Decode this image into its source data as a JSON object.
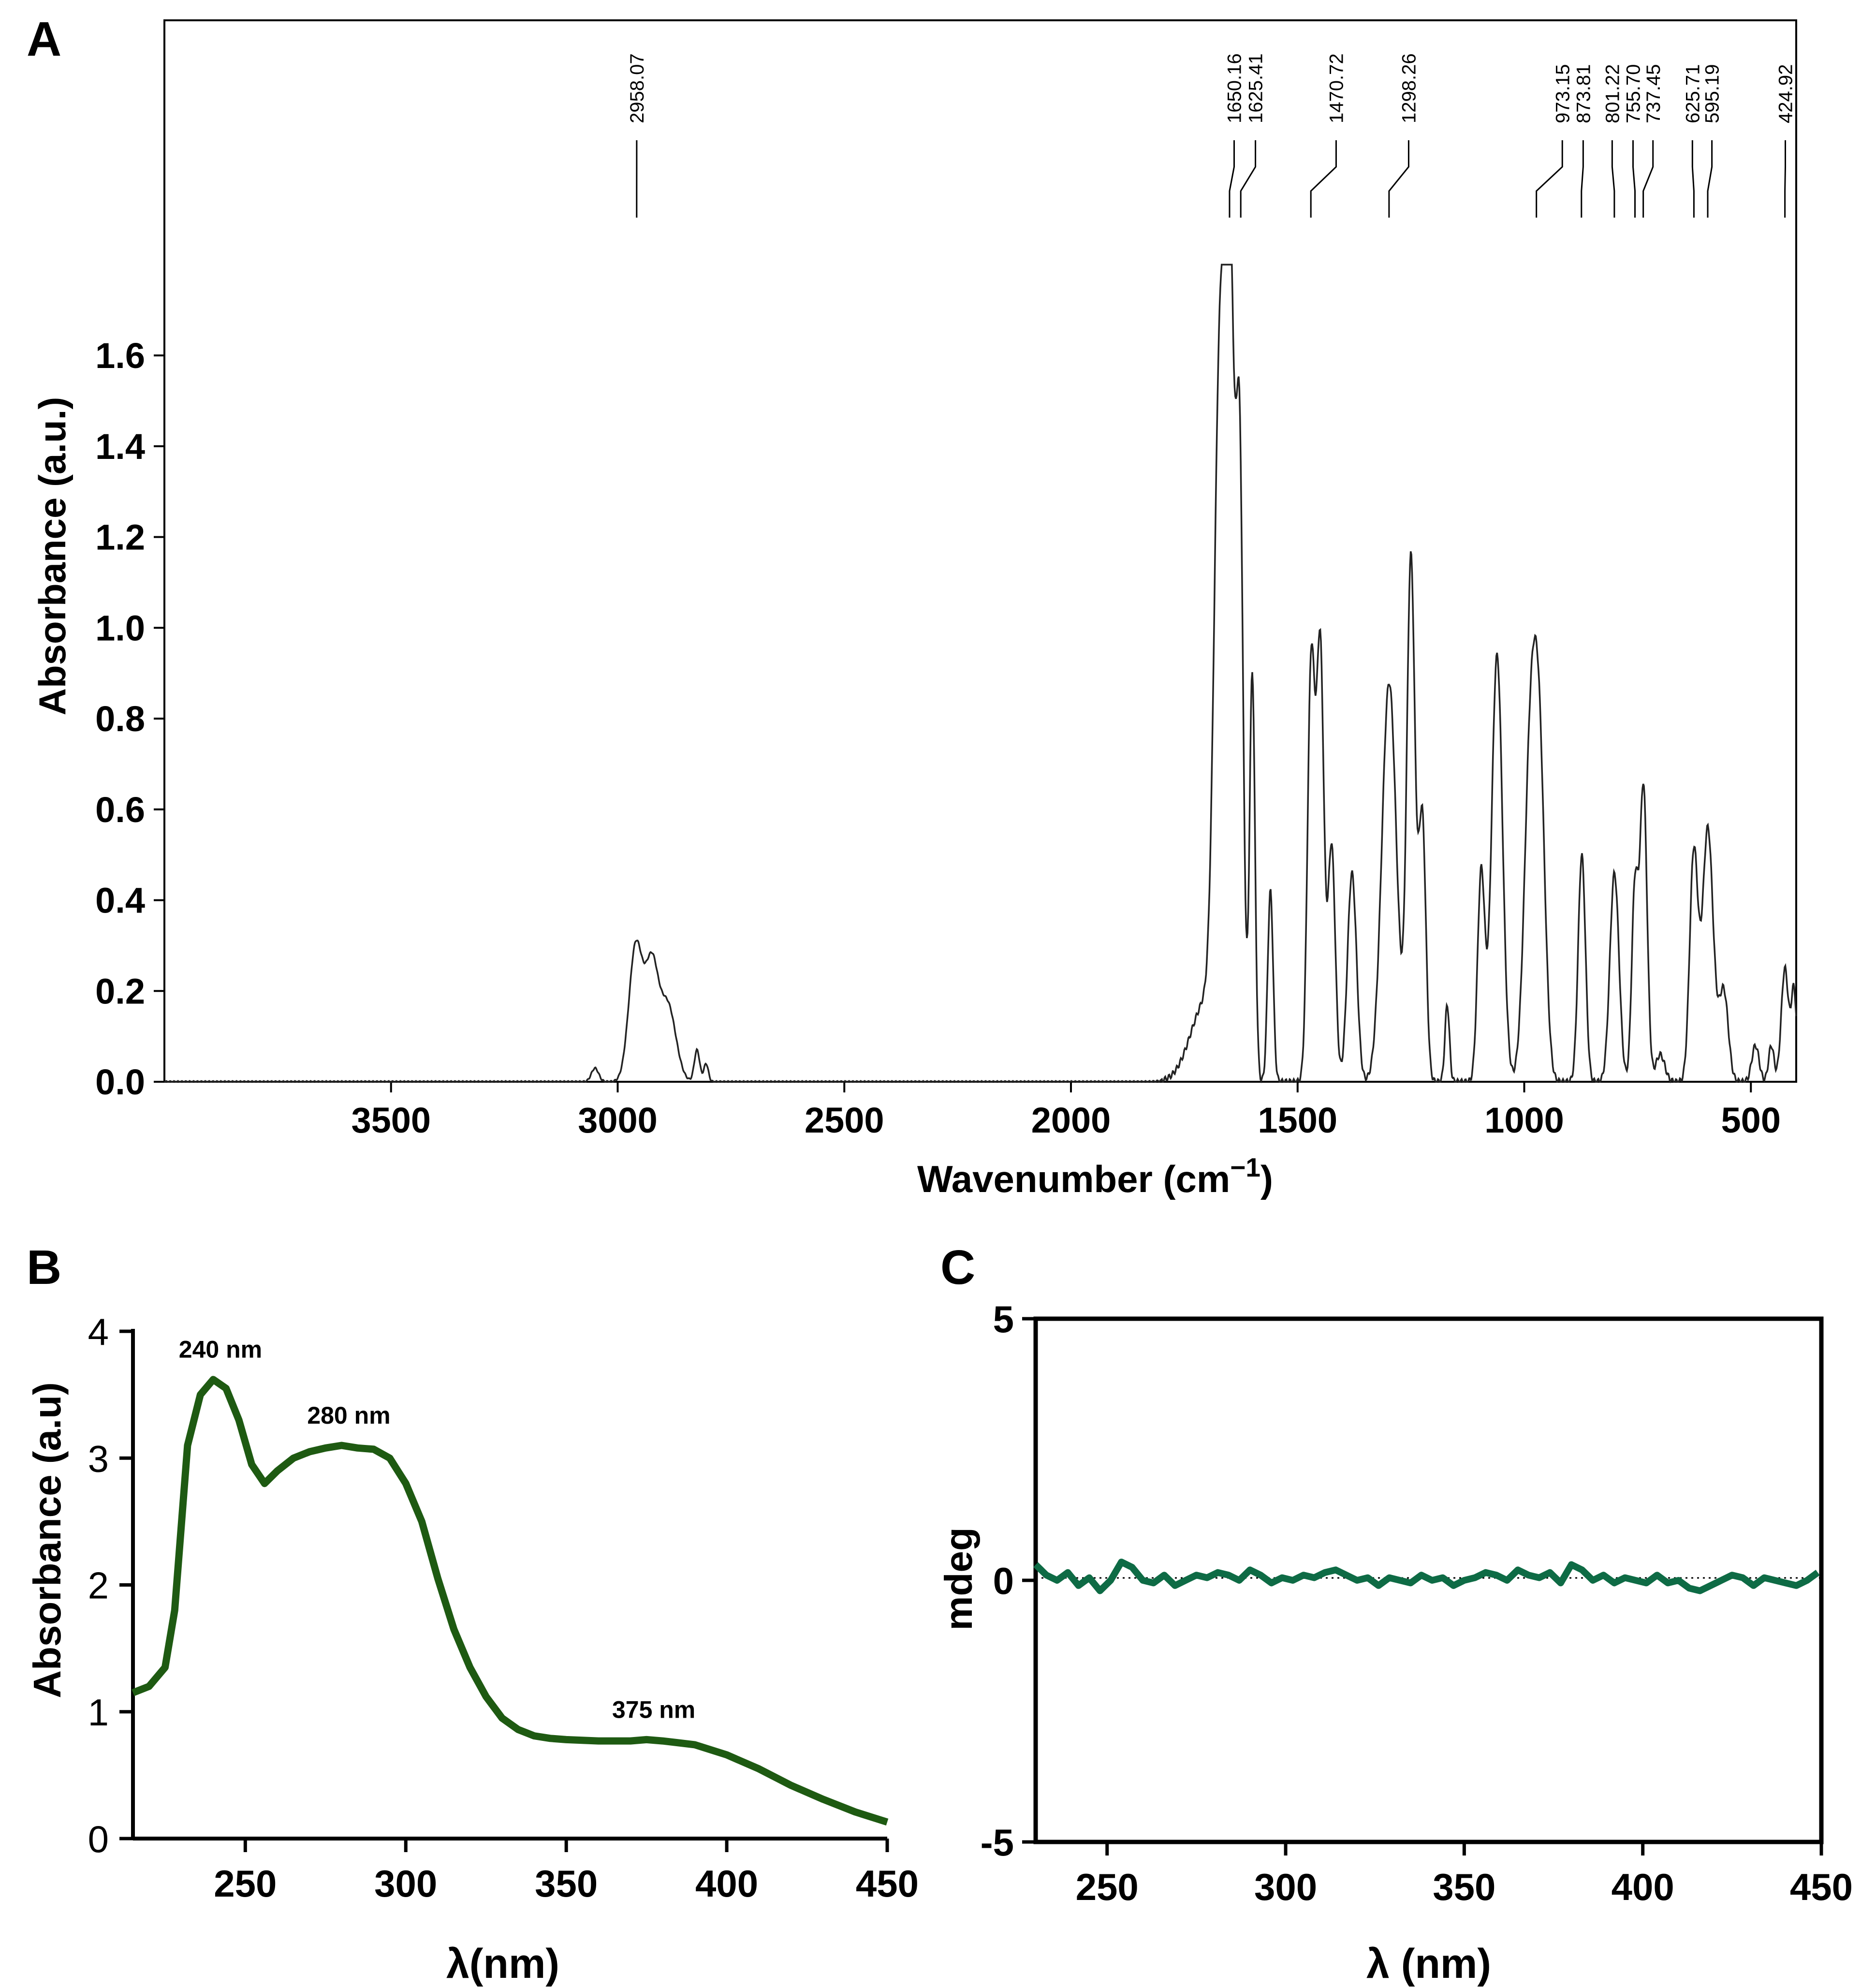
{
  "panel_labels": {
    "a": "A",
    "b": "B",
    "c": "C"
  },
  "colors": {
    "ir_line": "#222222",
    "uv_line": "#1e5a12",
    "cd_line": "#0e6b45",
    "axis": "#000000"
  },
  "chart_data": [
    {
      "panel": "A",
      "type": "line",
      "title": "",
      "xlabel": "Wavenumber (cm",
      "xlabel_sup": "−1",
      "xlabel_close": ")",
      "ylabel": "Absorbance (a.u.)",
      "xlim": [
        4000,
        400
      ],
      "ylim": [
        0,
        2.3
      ],
      "x_ticks": [
        3500,
        3000,
        2500,
        2000,
        1500,
        1000,
        500
      ],
      "x_tick_labels": [
        "3500",
        "3000",
        "2500",
        "2000",
        "1500",
        "1000",
        "500"
      ],
      "y_ticks": [
        0,
        0.2,
        0.4,
        0.6,
        0.8,
        1.0,
        1.2,
        1.4,
        1.6
      ],
      "y_tick_labels": [
        "0.0",
        "0.2",
        "0.4",
        "0.6",
        "0.8",
        "1.0",
        "1.2",
        "1.4",
        "1.6"
      ],
      "peaks": [
        {
          "center": 3050,
          "height": 0.03,
          "width": 8
        },
        {
          "center": 2960,
          "height": 0.3,
          "width": 15
        },
        {
          "center": 2925,
          "height": 0.24,
          "width": 14
        },
        {
          "center": 2890,
          "height": 0.17,
          "width": 18
        },
        {
          "center": 2825,
          "height": 0.07,
          "width": 6
        },
        {
          "center": 2805,
          "height": 0.04,
          "width": 5
        },
        {
          "center": 1700,
          "height": 0.18,
          "width": 35
        },
        {
          "center": 1672,
          "height": 1.42,
          "width": 12
        },
        {
          "center": 1650,
          "height": 1.72,
          "width": 10
        },
        {
          "center": 1628,
          "height": 1.33,
          "width": 8
        },
        {
          "center": 1600,
          "height": 0.9,
          "width": 6
        },
        {
          "center": 1560,
          "height": 0.42,
          "width": 6
        },
        {
          "center": 1470,
          "height": 0.92,
          "width": 8
        },
        {
          "center": 1450,
          "height": 0.95,
          "width": 8
        },
        {
          "center": 1425,
          "height": 0.52,
          "width": 8
        },
        {
          "center": 1380,
          "height": 0.46,
          "width": 10
        },
        {
          "center": 1298,
          "height": 0.88,
          "width": 16
        },
        {
          "center": 1250,
          "height": 1.15,
          "width": 9
        },
        {
          "center": 1225,
          "height": 0.58,
          "width": 8
        },
        {
          "center": 1170,
          "height": 0.17,
          "width": 5
        },
        {
          "center": 1095,
          "height": 0.46,
          "width": 8
        },
        {
          "center": 1060,
          "height": 0.94,
          "width": 12
        },
        {
          "center": 985,
          "height": 0.76,
          "width": 14
        },
        {
          "center": 965,
          "height": 0.55,
          "width": 12
        },
        {
          "center": 873,
          "height": 0.5,
          "width": 8
        },
        {
          "center": 801,
          "height": 0.46,
          "width": 10
        },
        {
          "center": 756,
          "height": 0.42,
          "width": 7
        },
        {
          "center": 737,
          "height": 0.65,
          "width": 8
        },
        {
          "center": 700,
          "height": 0.06,
          "width": 10
        },
        {
          "center": 626,
          "height": 0.5,
          "width": 9
        },
        {
          "center": 595,
          "height": 0.56,
          "width": 12
        },
        {
          "center": 560,
          "height": 0.2,
          "width": 10
        },
        {
          "center": 490,
          "height": 0.08,
          "width": 8
        },
        {
          "center": 455,
          "height": 0.08,
          "width": 6
        },
        {
          "center": 425,
          "height": 0.25,
          "width": 8
        },
        {
          "center": 405,
          "height": 0.2,
          "width": 6
        }
      ],
      "peak_labels": [
        {
          "x": 2958.07,
          "label": "2958.07",
          "slot": 2958
        },
        {
          "x": 1650.16,
          "label": "1650.16",
          "slot": 1640
        },
        {
          "x": 1625.41,
          "label": "1625.41",
          "slot": 1593
        },
        {
          "x": 1470.72,
          "label": "1470.72",
          "slot": 1415
        },
        {
          "x": 1298.26,
          "label": "1298.26",
          "slot": 1255
        },
        {
          "x": 973.15,
          "label": "973.15",
          "slot": 916
        },
        {
          "x": 873.81,
          "label": "873.81",
          "slot": 870
        },
        {
          "x": 801.22,
          "label": "801.22",
          "slot": 806
        },
        {
          "x": 755.7,
          "label": "755.70",
          "slot": 760
        },
        {
          "x": 737.45,
          "label": "737.45",
          "slot": 716
        },
        {
          "x": 625.71,
          "label": "625.71",
          "slot": 629
        },
        {
          "x": 595.19,
          "label": "595.19",
          "slot": 586
        },
        {
          "x": 424.92,
          "label": "424.92",
          "slot": 424
        }
      ]
    },
    {
      "panel": "B",
      "type": "line",
      "title": "",
      "xlabel": "λ(nm)",
      "ylabel": "Absorbance (a.u)",
      "xlim": [
        215,
        450
      ],
      "ylim": [
        0,
        4
      ],
      "x_ticks": [
        250,
        300,
        350,
        400,
        450
      ],
      "x_tick_labels": [
        "250",
        "300",
        "350",
        "400",
        "450"
      ],
      "y_ticks": [
        0,
        1,
        2,
        3,
        4
      ],
      "y_tick_labels": [
        "0",
        "1",
        "2",
        "3",
        "4"
      ],
      "x": [
        215,
        220,
        225,
        228,
        232,
        236,
        240,
        244,
        248,
        252,
        256,
        260,
        265,
        270,
        275,
        280,
        285,
        290,
        295,
        300,
        305,
        310,
        315,
        320,
        325,
        330,
        335,
        340,
        345,
        350,
        360,
        370,
        375,
        380,
        390,
        400,
        410,
        420,
        430,
        440,
        450
      ],
      "y": [
        1.15,
        1.2,
        1.35,
        1.8,
        3.1,
        3.5,
        3.62,
        3.55,
        3.3,
        2.95,
        2.8,
        2.9,
        3.0,
        3.05,
        3.08,
        3.1,
        3.08,
        3.07,
        3.0,
        2.8,
        2.5,
        2.05,
        1.65,
        1.35,
        1.12,
        0.95,
        0.86,
        0.81,
        0.79,
        0.78,
        0.77,
        0.77,
        0.78,
        0.77,
        0.74,
        0.66,
        0.55,
        0.42,
        0.31,
        0.21,
        0.13
      ],
      "annotations": [
        {
          "x": 240,
          "label": "240 nm"
        },
        {
          "x": 280,
          "label": "280 nm"
        },
        {
          "x": 375,
          "label": "375 nm"
        }
      ]
    },
    {
      "panel": "C",
      "type": "line",
      "title": "",
      "xlabel": "λ (nm)",
      "ylabel": "mdeg",
      "xlim": [
        230,
        450
      ],
      "ylim": [
        -5,
        5
      ],
      "x_ticks": [
        250,
        300,
        350,
        400,
        450
      ],
      "x_tick_labels": [
        "250",
        "300",
        "350",
        "400",
        "450"
      ],
      "y_ticks": [
        -5,
        0,
        5
      ],
      "y_tick_labels": [
        "-5",
        "0",
        "5"
      ],
      "x": [
        230,
        233,
        236,
        239,
        242,
        245,
        248,
        251,
        254,
        257,
        260,
        263,
        266,
        269,
        272,
        275,
        278,
        281,
        284,
        287,
        290,
        293,
        296,
        299,
        302,
        305,
        308,
        311,
        314,
        317,
        320,
        323,
        326,
        329,
        332,
        335,
        338,
        341,
        344,
        347,
        350,
        353,
        356,
        359,
        362,
        365,
        368,
        371,
        374,
        377,
        380,
        383,
        386,
        389,
        392,
        395,
        398,
        401,
        404,
        407,
        410,
        413,
        416,
        419,
        422,
        425,
        428,
        431,
        434,
        437,
        440,
        443,
        446,
        449
      ],
      "y": [
        0.3,
        0.1,
        0.0,
        0.15,
        -0.1,
        0.05,
        -0.2,
        0.0,
        0.35,
        0.25,
        0.0,
        -0.05,
        0.1,
        -0.1,
        0.0,
        0.1,
        0.05,
        0.15,
        0.1,
        0.0,
        0.2,
        0.1,
        -0.05,
        0.05,
        0.0,
        0.1,
        0.05,
        0.15,
        0.2,
        0.1,
        0.0,
        0.05,
        -0.1,
        0.05,
        0.0,
        -0.05,
        0.1,
        0.0,
        0.05,
        -0.1,
        0.0,
        0.05,
        0.15,
        0.1,
        0.0,
        0.2,
        0.1,
        0.05,
        0.15,
        -0.05,
        0.3,
        0.2,
        0.0,
        0.1,
        -0.05,
        0.05,
        0.0,
        -0.05,
        0.1,
        -0.05,
        0.0,
        -0.15,
        -0.2,
        -0.1,
        0.0,
        0.1,
        0.05,
        -0.1,
        0.05,
        0.0,
        -0.05,
        -0.1,
        0.0,
        0.15
      ]
    }
  ]
}
